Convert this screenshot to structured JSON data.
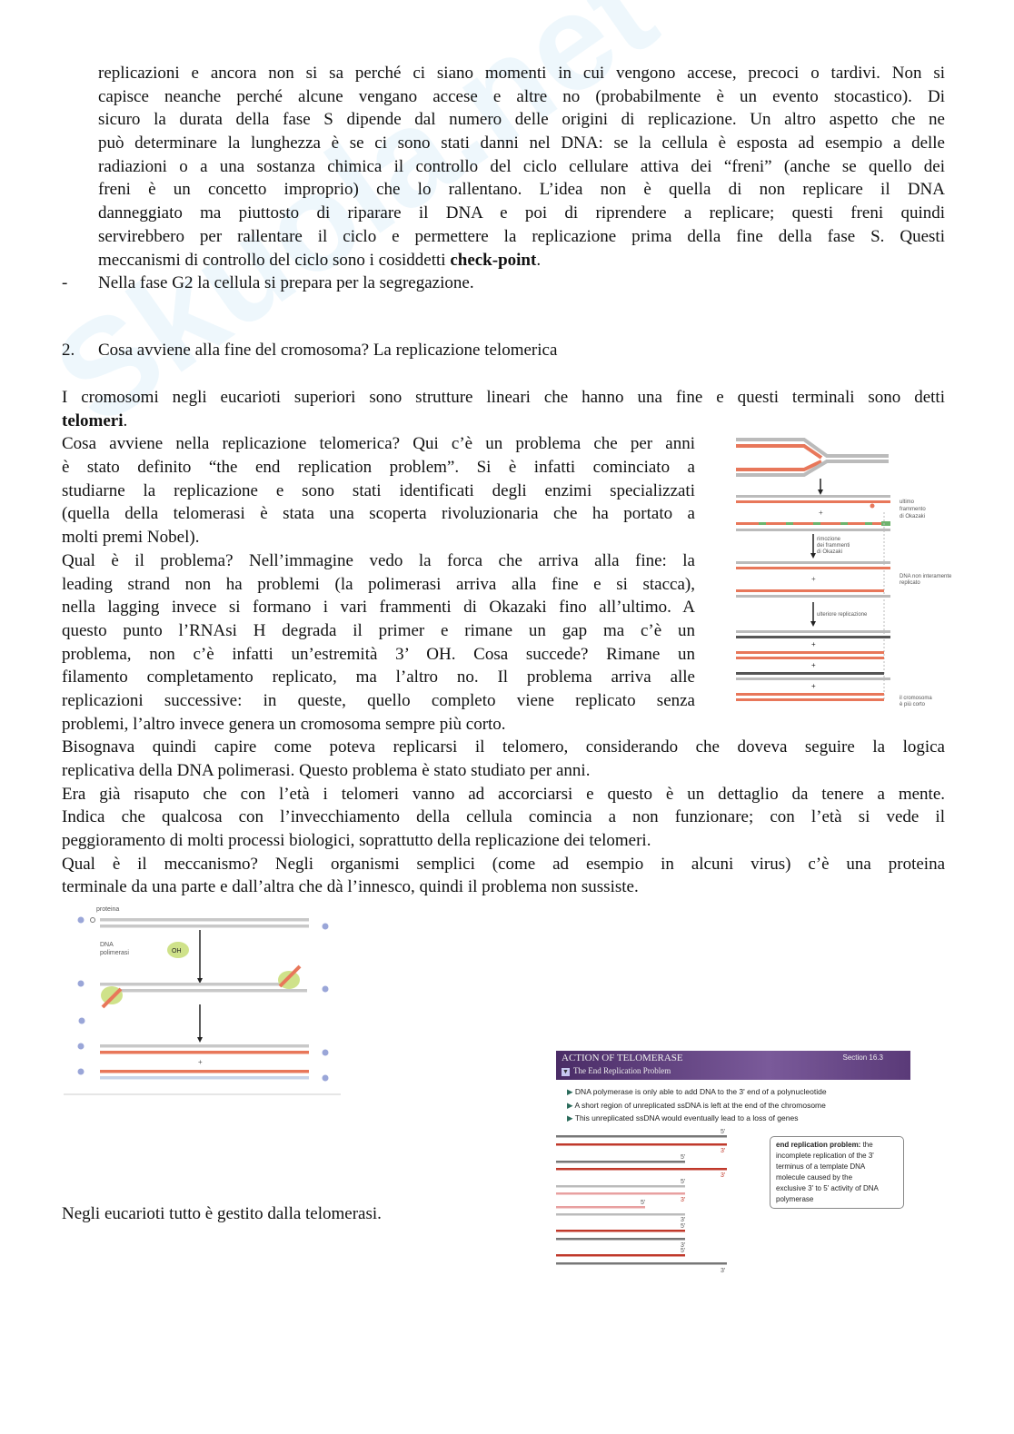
{
  "watermark": "Skuola.net",
  "p1": {
    "lines": [
      "replicazioni e ancora non si sa perché ci siano momenti in cui vengono accese, precoci o tardivi. Non si",
      "capisce neanche perché alcune vengano accese e altre no (probabilmente è un evento stocastico). Di",
      "sicuro la durata della fase S dipende dal numero delle origini di replicazione. Un altro aspetto che ne",
      "può determinare la lunghezza è se ci sono stati danni nel DNA: se la cellula è esposta ad esempio a delle",
      "radiazioni o a una sostanza chimica il controllo del ciclo cellulare attiva dei “freni” (anche se quello dei",
      "freni è un concetto improprio) che lo rallentano. L’idea non è quella di non replicare il DNA",
      "danneggiato ma piuttosto di riparare il DNA e poi di riprendere a replicare; questi freni quindi",
      "servirebbero per rallentare il ciclo e permettere la replicazione prima della fine della fase S. Questi"
    ],
    "last_prefix": "meccanismi di controllo del ciclo sono i cosiddetti ",
    "last_bold": "check-point",
    "last_suffix": "."
  },
  "bullet": {
    "marker": "-",
    "text": "Nella fase G2 la cellula si prepara per la segregazione."
  },
  "heading": {
    "number": "2.",
    "text": "Cosa avviene alla fine del cromosoma? La replicazione telomerica"
  },
  "p2": {
    "line0": "I cromosomi negli eucarioti superiori sono strutture lineari che hanno una fine e questi terminali sono detti",
    "bold": "telomeri",
    "suffix": "."
  },
  "p3": [
    "Cosa avviene nella replicazione telomerica? Qui c’è un problema che per anni",
    "è stato definito “the end replication problem”. Si è infatti cominciato a",
    "studiarne la replicazione e sono stati identificati degli enzimi specializzati",
    "(quella della telomerasi è stata una scoperta rivoluzionaria che ha portato a",
    "molti premi Nobel)."
  ],
  "p4": [
    "Qual è il problema? Nell’immagine vedo la forca che arriva alla fine: la",
    "leading strand non ha problemi (la polimerasi arriva alla fine e si stacca),",
    "nella lagging invece si formano i vari frammenti di Okazaki fino all’ultimo. A",
    "questo punto l’RNAsi H degrada il primer e rimane un gap ma c’è un",
    "problema, non c’è infatti un’estremità 3’ OH. Cosa succede? Rimane un",
    "filamento completamento replicato, ma l’altro no. Il problema arriva alle",
    "replicazioni successive: in queste, quello completo viene replicato senza",
    "problemi, l’altro invece genera un cromosoma sempre più corto."
  ],
  "p5": [
    "Bisognava quindi capire come poteva replicarsi il telomero, considerando che doveva seguire la logica",
    "replicativa della DNA polimerasi. Questo problema è stato studiato per anni."
  ],
  "p6": [
    "Era già risaputo che con l’età i telomeri vanno ad accorciarsi e questo è un dettaglio da tenere a mente.",
    "Indica che qualcosa con l’invecchiamento della cellula comincia a non funzionare; con l’età si vede il",
    "peggioramento di molti processi biologici, soprattutto della replicazione dei telomeri."
  ],
  "p7": [
    "Qual è il meccanismo? Negli organismi semplici (come ad esempio in alcuni virus) c’è una proteina",
    "terminale da una parte e dall’altra che dà l’innesco, quindi il problema non sussiste."
  ],
  "final": "Negli eucarioti tutto è gestito dalla telomerasi.",
  "fig_right": {
    "label_okazaki_last": [
      "ultimo",
      "frammento",
      "di Okazaki"
    ],
    "label_removal": [
      "rimozione",
      "dei frammenti",
      "di Okazaki"
    ],
    "label_incomplete": [
      "DNA non interamente",
      "replicato"
    ],
    "label_further": "ulteriore replicazione",
    "label_shorter": [
      "il cromosoma",
      "è più corto"
    ],
    "colors": {
      "template": "#c8c8c8",
      "new": "#e8775a",
      "dark": "#555555",
      "okazaki": "#6db36d"
    }
  },
  "fig_left": {
    "label_protein": "proteina",
    "label_polymerase": [
      "DNA",
      "polimerasi"
    ],
    "label_oh": "OH",
    "end_5": "5'",
    "end_3": "3'"
  },
  "fig_telomerase": {
    "title": "ACTION OF TELOMERASE",
    "subtitle": "The End Replication Problem",
    "section": "Section 16.3",
    "bullets": [
      "DNA polymerase is only able to add DNA to the 3' end of a polynucleotide",
      "A short region of unreplicated ssDNA is left at the end of the chromosome",
      "This unreplicated ssDNA would eventually lead to a loss of genes"
    ],
    "definition_term": "end replication problem:",
    "definition_text": [
      "the",
      "incomplete replication of the 3'",
      "terminus of a template DNA",
      "molecule caused by the",
      "exclusive 3' to 5' activity of DNA",
      "polymerase"
    ],
    "label_5": "5'",
    "label_3": "3'",
    "colors": {
      "banner": "#5a3a78",
      "red": "#c0392b",
      "gray": "#777777",
      "pink": "#e8a0a0",
      "light": "#bbbbbb"
    }
  }
}
